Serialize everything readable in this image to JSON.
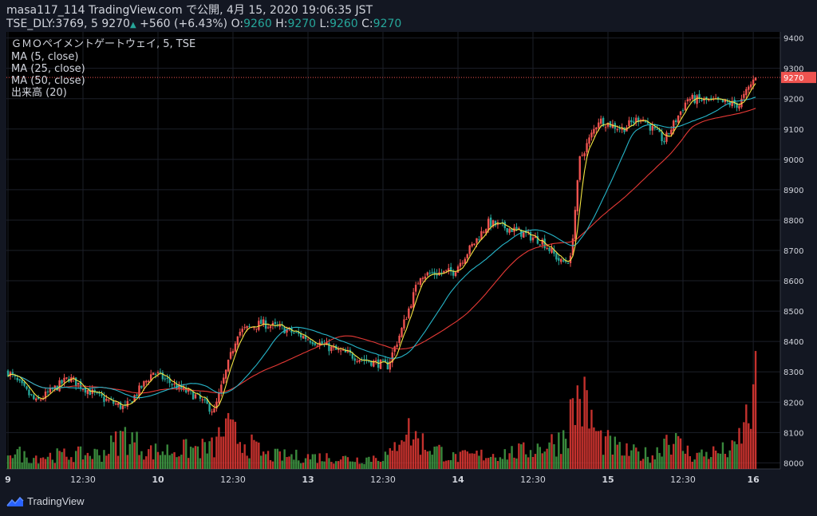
{
  "header": {
    "line1": "masa117_114 TradingView.com で公開, 4月 15, 2020 19:06:35 JST",
    "symbol": "TSE_DLY:3769, 5",
    "last": "9270",
    "arrow": "▲",
    "change": "+560 (+6.43%)",
    "o_label": "O:",
    "o": "9260",
    "h_label": "H:",
    "h": "9270",
    "l_label": "L:",
    "l": "9260",
    "c_label": "C:",
    "c": "9270"
  },
  "legend": {
    "title": "ＧＭＯペイメントゲートウェイ, 5, TSE",
    "ma5": "MA (5, close)",
    "ma25": "MA (25, close)",
    "ma50": "MA (50, close)",
    "volume": "出来高 (20)"
  },
  "brand": "TradingView",
  "colors": {
    "background": "#000000",
    "page": "#131722",
    "up": "#ef5350",
    "down": "#26a69a",
    "ma5": "#f4e542",
    "ma25": "#26b5c9",
    "ma50": "#e53935",
    "vol_up": "#e53935",
    "vol_down": "#43a047",
    "price_tag": "#ef5350"
  },
  "chart_data": {
    "type": "candlestick",
    "ylim": [
      7980,
      9420
    ],
    "y_ticks": [
      "9400",
      "9300",
      "9200",
      "9100",
      "9000",
      "8900",
      "8800",
      "8700",
      "8600",
      "8500",
      "8400",
      "8300",
      "8200",
      "8100",
      "8000"
    ],
    "x_ticks": [
      "9",
      "12:30",
      "10",
      "12:30",
      "13",
      "12:30",
      "14",
      "12:30",
      "15",
      "12:30",
      "16"
    ],
    "last_price_label": "9270",
    "keypoints": [
      [
        0,
        8300
      ],
      [
        12,
        8200
      ],
      [
        26,
        8280
      ],
      [
        38,
        8220
      ],
      [
        50,
        8180
      ],
      [
        62,
        8300
      ],
      [
        72,
        8250
      ],
      [
        80,
        8220
      ],
      [
        88,
        8170
      ],
      [
        98,
        8430
      ],
      [
        108,
        8460
      ],
      [
        118,
        8440
      ],
      [
        128,
        8410
      ],
      [
        140,
        8370
      ],
      [
        152,
        8340
      ],
      [
        162,
        8320
      ],
      [
        168,
        8440
      ],
      [
        176,
        8620
      ],
      [
        190,
        8630
      ],
      [
        205,
        8790
      ],
      [
        215,
        8770
      ],
      [
        228,
        8730
      ],
      [
        236,
        8660
      ],
      [
        240,
        8670
      ],
      [
        244,
        9000
      ],
      [
        252,
        9130
      ],
      [
        262,
        9100
      ],
      [
        270,
        9140
      ],
      [
        280,
        9060
      ],
      [
        290,
        9200
      ],
      [
        302,
        9190
      ],
      [
        312,
        9180
      ],
      [
        318,
        9260
      ]
    ],
    "volume_keypoints": [
      [
        0,
        0.22
      ],
      [
        8,
        0.12
      ],
      [
        20,
        0.14
      ],
      [
        40,
        0.16
      ],
      [
        50,
        0.35
      ],
      [
        60,
        0.18
      ],
      [
        88,
        0.22
      ],
      [
        92,
        0.42
      ],
      [
        110,
        0.14
      ],
      [
        138,
        0.12
      ],
      [
        150,
        0.1
      ],
      [
        164,
        0.15
      ],
      [
        168,
        0.45
      ],
      [
        176,
        0.28
      ],
      [
        190,
        0.12
      ],
      [
        220,
        0.18
      ],
      [
        236,
        0.3
      ],
      [
        244,
        0.78
      ],
      [
        252,
        0.32
      ],
      [
        262,
        0.18
      ],
      [
        276,
        0.14
      ],
      [
        281,
        0.35
      ],
      [
        292,
        0.14
      ],
      [
        310,
        0.2
      ],
      [
        316,
        0.55
      ],
      [
        319,
        0.8
      ]
    ],
    "bars": 320,
    "ma_periods": [
      5,
      25,
      50
    ]
  }
}
